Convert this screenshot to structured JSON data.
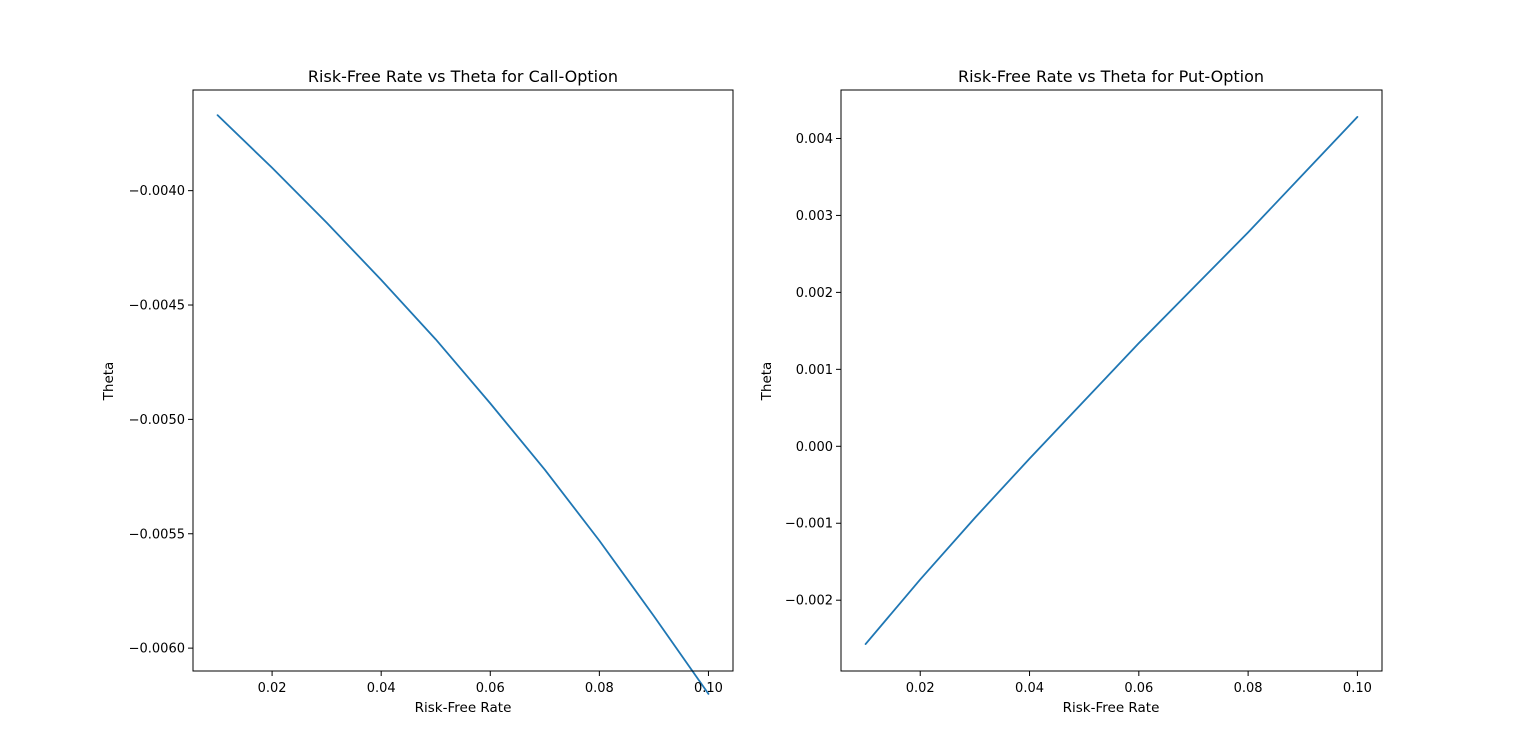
{
  "colors": {
    "series": "#1f77b4",
    "background": "#ffffff",
    "axes": "#000000"
  },
  "chart_data": [
    {
      "type": "line",
      "title": "Risk-Free Rate vs Theta for Call-Option",
      "xlabel": "Risk-Free Rate",
      "ylabel": "Theta",
      "xlim": [
        0.0055,
        0.1045
      ],
      "ylim": [
        -0.0061,
        -0.00356
      ],
      "xticks": [
        0.02,
        0.04,
        0.06,
        0.08,
        0.1
      ],
      "xtick_labels": [
        "0.02",
        "0.04",
        "0.06",
        "0.08",
        "0.10"
      ],
      "yticks": [
        -0.004,
        -0.0045,
        -0.005,
        -0.0055,
        -0.006
      ],
      "ytick_labels": [
        "−0.0040",
        "−0.0045",
        "−0.0050",
        "−0.0055",
        "−0.0060"
      ],
      "grid": false,
      "series": [
        {
          "x": [
            0.01,
            0.02,
            0.03,
            0.04,
            0.05,
            0.06,
            0.07,
            0.08,
            0.09,
            0.1
          ],
          "y": [
            -0.00367,
            -0.0039,
            -0.00414,
            -0.00439,
            -0.00465,
            -0.00493,
            -0.00522,
            -0.00553,
            -0.00586,
            -0.0062
          ]
        }
      ]
    },
    {
      "type": "line",
      "title": "Risk-Free Rate vs Theta for Put-Option",
      "xlabel": "Risk-Free Rate",
      "ylabel": "Theta",
      "xlim": [
        0.0055,
        0.1045
      ],
      "ylim": [
        -0.00292,
        0.00463
      ],
      "xticks": [
        0.02,
        0.04,
        0.06,
        0.08,
        0.1
      ],
      "xtick_labels": [
        "0.02",
        "0.04",
        "0.06",
        "0.08",
        "0.10"
      ],
      "yticks": [
        0.004,
        0.003,
        0.002,
        0.001,
        0.0,
        -0.001,
        -0.002
      ],
      "ytick_labels": [
        "0.004",
        "0.003",
        "0.002",
        "0.001",
        "0.000",
        "−0.001",
        "−0.002"
      ],
      "grid": false,
      "series": [
        {
          "x": [
            0.01,
            0.02,
            0.03,
            0.04,
            0.05,
            0.06,
            0.07,
            0.08,
            0.09,
            0.1
          ],
          "y": [
            -0.00257,
            -0.00173,
            -0.00093,
            -0.00016,
            0.00059,
            0.00134,
            0.00206,
            0.00278,
            0.00353,
            0.00428
          ]
        }
      ]
    }
  ]
}
